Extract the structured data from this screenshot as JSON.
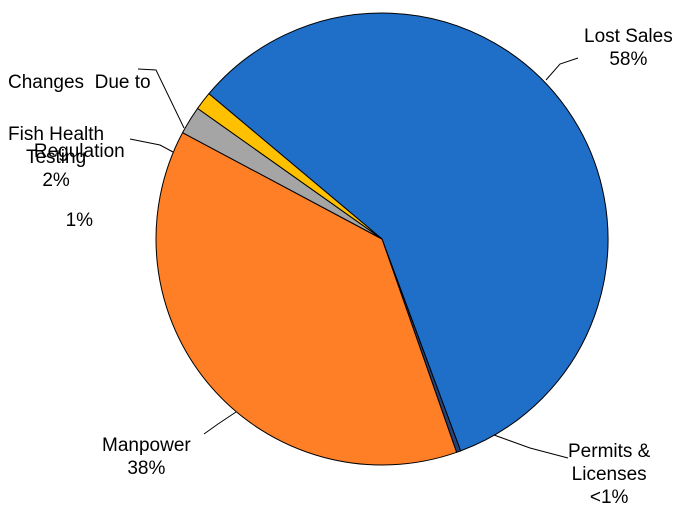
{
  "chart_data": {
    "type": "pie",
    "title": "",
    "slices": [
      {
        "name": "Lost Sales",
        "value": 58,
        "value_label": "58%",
        "color": "#1F6FC8"
      },
      {
        "name": "Permits & Licenses",
        "value": 0.3,
        "value_label": "<1%",
        "color": "#264478"
      },
      {
        "name": "Manpower",
        "value": 38,
        "value_label": "38%",
        "color": "#FF7F27"
      },
      {
        "name": "Fish Health Testing",
        "value": 2,
        "value_label": "2%",
        "color": "#A5A5A5"
      },
      {
        "name": "Changes Due to Regulation",
        "value": 1.3,
        "value_label": "1%",
        "color": "#FFC000"
      }
    ],
    "labels": {
      "lost_sales": {
        "line1": "Lost Sales",
        "pct": "58%"
      },
      "permits": {
        "line1": "Permits &",
        "line2": "Licenses",
        "pct": "<1%"
      },
      "manpower": {
        "line1": "Manpower",
        "pct": "38%"
      },
      "fish_health": {
        "line1": "Fish Health",
        "line2": "Testing",
        "pct": "2%"
      },
      "regulation": {
        "line1": "Changes  Due to",
        "line2": "Regulation",
        "pct": "1%"
      }
    }
  }
}
